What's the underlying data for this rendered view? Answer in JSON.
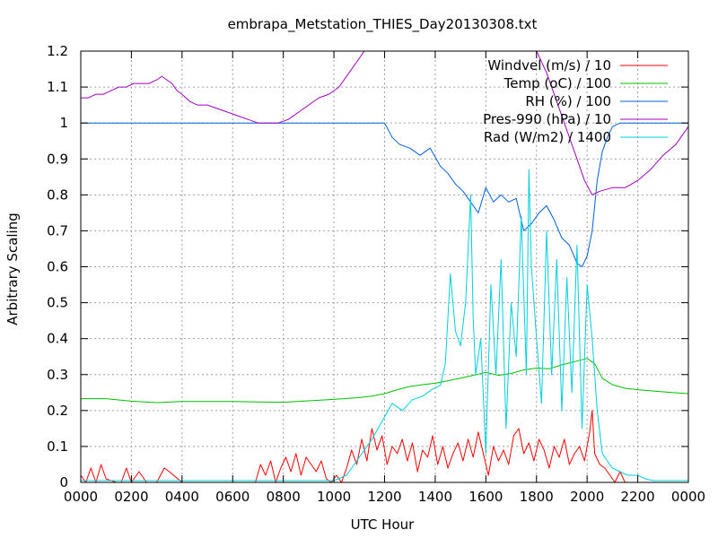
{
  "chart_data": {
    "type": "line",
    "title": "embrapa_Metstation_THIES_Day20130308.txt",
    "xlabel": "UTC Hour",
    "ylabel": "Arbitrary Scaling",
    "xlim": [
      0,
      24
    ],
    "ylim": [
      0,
      1.2
    ],
    "grid": true,
    "legend_position": "top-right",
    "x_ticks": [
      {
        "value": 0,
        "label": "0000"
      },
      {
        "value": 2,
        "label": "0200"
      },
      {
        "value": 4,
        "label": "0400"
      },
      {
        "value": 6,
        "label": "0600"
      },
      {
        "value": 8,
        "label": "0800"
      },
      {
        "value": 10,
        "label": "1000"
      },
      {
        "value": 12,
        "label": "1200"
      },
      {
        "value": 14,
        "label": "1400"
      },
      {
        "value": 16,
        "label": "1600"
      },
      {
        "value": 18,
        "label": "1800"
      },
      {
        "value": 20,
        "label": "2000"
      },
      {
        "value": 22,
        "label": "2200"
      },
      {
        "value": 24,
        "label": "0000"
      }
    ],
    "y_ticks": [
      {
        "value": 0,
        "label": "0"
      },
      {
        "value": 0.1,
        "label": "0.1"
      },
      {
        "value": 0.2,
        "label": "0.2"
      },
      {
        "value": 0.3,
        "label": "0.3"
      },
      {
        "value": 0.4,
        "label": "0.4"
      },
      {
        "value": 0.5,
        "label": "0.5"
      },
      {
        "value": 0.6,
        "label": "0.6"
      },
      {
        "value": 0.7,
        "label": "0.7"
      },
      {
        "value": 0.8,
        "label": "0.8"
      },
      {
        "value": 0.9,
        "label": "0.9"
      },
      {
        "value": 1.0,
        "label": "1"
      },
      {
        "value": 1.1,
        "label": "1.1"
      },
      {
        "value": 1.2,
        "label": "1.2"
      }
    ],
    "series": [
      {
        "name": "Windvel (m/s) / 10",
        "color": "#ff0000",
        "x": [
          0,
          0.2,
          0.4,
          0.6,
          0.8,
          1.0,
          1.4,
          1.6,
          1.8,
          2.0,
          2.3,
          2.6,
          3.0,
          3.3,
          3.5,
          4.0,
          5.0,
          6.0,
          6.9,
          7.1,
          7.3,
          7.5,
          7.7,
          7.9,
          8.1,
          8.3,
          8.5,
          8.7,
          8.9,
          9.1,
          9.3,
          9.5,
          9.7,
          9.9,
          10.1,
          10.3,
          10.5,
          10.7,
          10.9,
          11.1,
          11.3,
          11.5,
          11.7,
          11.9,
          12.1,
          12.3,
          12.5,
          12.7,
          12.9,
          13.1,
          13.3,
          13.5,
          13.7,
          13.9,
          14.1,
          14.3,
          14.5,
          14.7,
          14.9,
          15.1,
          15.3,
          15.5,
          15.7,
          15.9,
          16.1,
          16.3,
          16.5,
          16.7,
          16.9,
          17.1,
          17.3,
          17.5,
          17.7,
          17.9,
          18.1,
          18.3,
          18.5,
          18.7,
          18.9,
          19.1,
          19.3,
          19.5,
          19.7,
          19.9,
          20.1,
          20.2,
          20.3,
          20.5,
          20.7,
          20.9,
          21.1,
          21.3,
          21.5,
          22.0,
          23.0,
          24.0
        ],
        "values": [
          0.02,
          0.0,
          0.04,
          0.0,
          0.05,
          0.01,
          0.0,
          0.0,
          0.04,
          0.0,
          0.03,
          0.0,
          0.0,
          0.04,
          0.03,
          0.0,
          0.0,
          0.0,
          0.0,
          0.05,
          0.02,
          0.06,
          0.0,
          0.04,
          0.07,
          0.03,
          0.08,
          0.02,
          0.07,
          0.05,
          0.03,
          0.06,
          0.01,
          0.0,
          0.02,
          0.0,
          0.04,
          0.09,
          0.05,
          0.12,
          0.06,
          0.15,
          0.09,
          0.13,
          0.05,
          0.1,
          0.08,
          0.12,
          0.06,
          0.11,
          0.03,
          0.09,
          0.07,
          0.13,
          0.05,
          0.1,
          0.04,
          0.08,
          0.11,
          0.06,
          0.12,
          0.07,
          0.14,
          0.08,
          0.02,
          0.1,
          0.06,
          0.09,
          0.05,
          0.13,
          0.15,
          0.08,
          0.11,
          0.06,
          0.12,
          0.09,
          0.04,
          0.1,
          0.07,
          0.12,
          0.05,
          0.08,
          0.1,
          0.06,
          0.14,
          0.2,
          0.08,
          0.05,
          0.04,
          0.02,
          0.0,
          0.03,
          0.0,
          0.0,
          0.0,
          0.0
        ]
      },
      {
        "name": "Temp (oC) / 100",
        "color": "#00c000",
        "x": [
          0,
          1,
          2,
          3,
          4,
          5,
          6,
          7,
          8,
          9,
          10,
          11,
          11.5,
          12,
          12.5,
          13,
          13.5,
          14,
          14.5,
          15,
          15.5,
          16,
          16.5,
          17,
          17.5,
          18,
          18.5,
          19,
          19.5,
          20,
          20.3,
          20.6,
          21,
          21.5,
          22,
          23,
          24
        ],
        "values": [
          0.233,
          0.233,
          0.226,
          0.222,
          0.225,
          0.225,
          0.225,
          0.224,
          0.223,
          0.227,
          0.231,
          0.236,
          0.24,
          0.247,
          0.258,
          0.267,
          0.272,
          0.276,
          0.283,
          0.29,
          0.298,
          0.306,
          0.298,
          0.303,
          0.313,
          0.318,
          0.316,
          0.327,
          0.336,
          0.345,
          0.33,
          0.29,
          0.272,
          0.262,
          0.258,
          0.252,
          0.247
        ]
      },
      {
        "name": "RH (%) / 100",
        "color": "#0060e0",
        "x": [
          0,
          6,
          12,
          12.3,
          12.6,
          13.0,
          13.4,
          13.8,
          14.2,
          14.5,
          14.8,
          15.1,
          15.4,
          15.7,
          16.0,
          16.3,
          16.6,
          16.9,
          17.2,
          17.5,
          17.8,
          18.1,
          18.4,
          18.7,
          19.0,
          19.3,
          19.6,
          19.8,
          20.0,
          20.2,
          20.4,
          20.6,
          20.8,
          21.0,
          21.3,
          21.6,
          22.0,
          23,
          24
        ],
        "values": [
          1.0,
          1.0,
          1.0,
          0.96,
          0.94,
          0.93,
          0.91,
          0.93,
          0.88,
          0.86,
          0.83,
          0.81,
          0.78,
          0.75,
          0.82,
          0.78,
          0.8,
          0.78,
          0.79,
          0.7,
          0.72,
          0.75,
          0.77,
          0.73,
          0.68,
          0.66,
          0.61,
          0.6,
          0.63,
          0.7,
          0.84,
          0.92,
          0.96,
          0.99,
          1.0,
          1.0,
          1.0,
          1.0,
          1.0
        ]
      },
      {
        "name": "Pres-990 (hPa) / 10",
        "color": "#a000c0",
        "x": [
          0,
          0.3,
          0.6,
          0.9,
          1.2,
          1.5,
          1.8,
          2.1,
          2.4,
          2.7,
          3.0,
          3.2,
          3.4,
          3.6,
          3.8,
          4.0,
          4.3,
          4.6,
          5.0,
          5.4,
          5.8,
          6.2,
          6.6,
          7.0,
          7.4,
          7.8,
          8.2,
          8.6,
          9.0,
          9.4,
          9.8,
          10.2,
          10.6,
          11.0,
          11.2,
          18.0,
          18.4,
          18.8,
          19.2,
          19.6,
          19.9,
          20.2,
          20.5,
          21.0,
          21.5,
          22.0,
          22.5,
          23.0,
          23.5,
          24.0
        ],
        "values": [
          1.07,
          1.07,
          1.08,
          1.08,
          1.09,
          1.1,
          1.1,
          1.11,
          1.11,
          1.11,
          1.12,
          1.13,
          1.12,
          1.11,
          1.09,
          1.08,
          1.06,
          1.05,
          1.05,
          1.04,
          1.03,
          1.02,
          1.01,
          1.0,
          1.0,
          1.0,
          1.01,
          1.03,
          1.05,
          1.07,
          1.08,
          1.1,
          1.14,
          1.18,
          1.2,
          1.2,
          1.14,
          1.06,
          0.98,
          0.9,
          0.84,
          0.8,
          0.81,
          0.82,
          0.82,
          0.84,
          0.87,
          0.91,
          0.94,
          0.99
        ]
      },
      {
        "name": "Rad (W/m2) / 1400",
        "color": "#00d0e0",
        "x": [
          0,
          10.0,
          10.5,
          11.0,
          11.5,
          11.9,
          12.3,
          12.7,
          13.1,
          13.5,
          13.9,
          14.2,
          14.4,
          14.6,
          14.8,
          15.0,
          15.2,
          15.4,
          15.5,
          15.6,
          15.8,
          16.0,
          16.2,
          16.4,
          16.6,
          16.8,
          17.0,
          17.2,
          17.4,
          17.6,
          17.7,
          17.8,
          18.0,
          18.2,
          18.4,
          18.6,
          18.8,
          19.0,
          19.2,
          19.4,
          19.6,
          19.8,
          20.0,
          20.2,
          20.4,
          20.6,
          20.8,
          21.0,
          21.3,
          21.6,
          22.0,
          22.3,
          22.6,
          23.0,
          24.0
        ],
        "values": [
          0.005,
          0.005,
          0.02,
          0.07,
          0.12,
          0.17,
          0.22,
          0.2,
          0.23,
          0.24,
          0.26,
          0.27,
          0.33,
          0.58,
          0.42,
          0.38,
          0.5,
          0.8,
          0.46,
          0.3,
          0.4,
          0.08,
          0.55,
          0.3,
          0.62,
          0.15,
          0.5,
          0.35,
          0.74,
          0.3,
          0.87,
          0.6,
          0.4,
          0.22,
          0.7,
          0.3,
          0.62,
          0.2,
          0.57,
          0.25,
          0.66,
          0.15,
          0.55,
          0.4,
          0.2,
          0.08,
          0.06,
          0.04,
          0.03,
          0.02,
          0.02,
          0.01,
          0.005,
          0.005,
          0.005
        ]
      }
    ]
  }
}
